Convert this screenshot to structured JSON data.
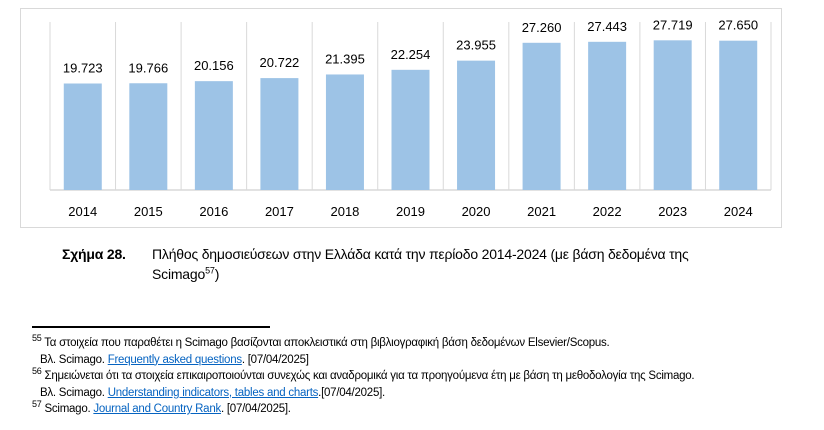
{
  "chart_data": {
    "type": "bar",
    "categories": [
      "2014",
      "2015",
      "2016",
      "2017",
      "2018",
      "2019",
      "2020",
      "2021",
      "2022",
      "2023",
      "2024"
    ],
    "values": [
      19723,
      19766,
      20156,
      20722,
      21395,
      22254,
      23955,
      27260,
      27443,
      27719,
      27650
    ],
    "data_labels": [
      "19.723",
      "19.766",
      "20.156",
      "20.722",
      "21.395",
      "22.254",
      "23.955",
      "27.260",
      "27.443",
      "27.719",
      "27.650"
    ],
    "ylim": [
      0,
      30000
    ],
    "y_axis_visible": false,
    "grid": "vertical category separators",
    "bar_color": "#9dc3e6",
    "grid_color": "#d9d9d9"
  },
  "caption": {
    "label": "Σχήμα 28.",
    "text": "Πλήθος δημοσιεύσεων στην Ελλάδα κατά την περίοδο 2014-2024 (με βάση δεδομένα της Scimago",
    "ref": "57",
    "close": ")"
  },
  "footnotes": [
    {
      "num": "55",
      "text": "Τα στοιχεία που παραθέτει η Scimago βασίζονται αποκλειστικά στη βιβλιογραφική βάση δεδομένων Elsevier/Scopus.",
      "prefix": "Βλ. Scimago. ",
      "link": "Frequently asked questions",
      "suffix": ". [07/04/2025]"
    },
    {
      "num": "56",
      "text": "Σημειώνεται ότι τα στοιχεία επικαιροποιούνται συνεχώς και αναδρομικά για τα προηγούμενα έτη με βάση τη μεθοδολογία της Scimago.",
      "prefix": "Βλ. Scimago. ",
      "link": "Understanding indicators, tables and charts",
      "suffix": ".[07/04/2025]."
    },
    {
      "num": "57",
      "text": "Scimago. ",
      "link": "Journal and Country Rank",
      "suffix": ". [07/04/2025]."
    }
  ]
}
